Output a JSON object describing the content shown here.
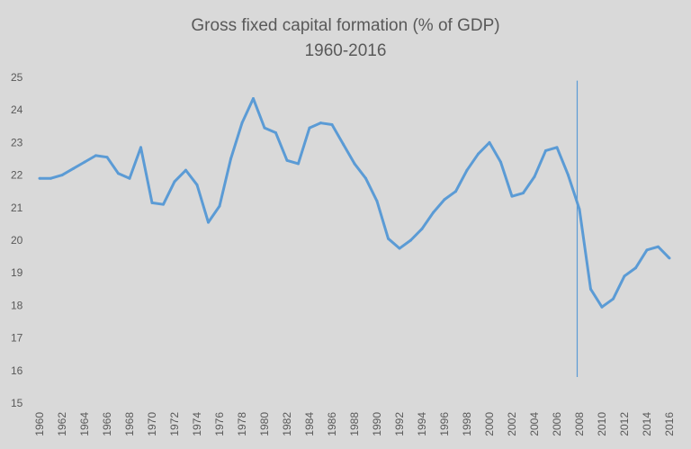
{
  "chart_data": {
    "type": "line",
    "title": "Gross fixed capital formation (% of GDP)",
    "subtitle": "1960-2016",
    "xlabel": "",
    "ylabel": "",
    "ylim": [
      15,
      25
    ],
    "xlim": [
      1960,
      2016
    ],
    "yticks": [
      "15",
      "16",
      "17",
      "18",
      "19",
      "20",
      "21",
      "22",
      "23",
      "24",
      "25"
    ],
    "xticks": [
      "1960",
      "1962",
      "1964",
      "1966",
      "1968",
      "1970",
      "1972",
      "1974",
      "1976",
      "1978",
      "1980",
      "1982",
      "1984",
      "1986",
      "1988",
      "1990",
      "1992",
      "1994",
      "1996",
      "1998",
      "2000",
      "2002",
      "2004",
      "2006",
      "2008",
      "2010",
      "2012",
      "2014",
      "2016"
    ],
    "grid": false,
    "legend": "none",
    "line_color": "#5b9bd5",
    "background": "#d9d9d9",
    "x": [
      1960,
      1961,
      1962,
      1963,
      1964,
      1965,
      1966,
      1967,
      1968,
      1969,
      1970,
      1971,
      1972,
      1973,
      1974,
      1975,
      1976,
      1977,
      1978,
      1979,
      1980,
      1981,
      1982,
      1983,
      1984,
      1985,
      1986,
      1987,
      1988,
      1989,
      1990,
      1991,
      1992,
      1993,
      1994,
      1995,
      1996,
      1997,
      1998,
      1999,
      2000,
      2001,
      2002,
      2003,
      2004,
      2005,
      2006,
      2007,
      2008,
      2009,
      2010,
      2011,
      2012,
      2013,
      2014,
      2015,
      2016
    ],
    "series": [
      {
        "values": [
          21.9,
          21.9,
          22.0,
          22.2,
          22.4,
          22.6,
          22.55,
          22.05,
          21.9,
          22.85,
          21.15,
          21.1,
          21.8,
          22.15,
          21.7,
          20.55,
          21.05,
          22.5,
          23.6,
          24.35,
          23.45,
          23.3,
          22.45,
          22.35,
          23.45,
          23.6,
          23.55,
          22.95,
          22.35,
          21.9,
          21.2,
          20.05,
          19.75,
          20.0,
          20.35,
          20.85,
          21.25,
          21.5,
          22.15,
          22.65,
          23.0,
          22.4,
          21.35,
          21.45,
          21.95,
          22.75,
          22.85,
          22.0,
          20.95,
          18.5,
          17.95,
          18.2,
          18.9,
          19.15,
          19.7,
          19.8,
          19.45
        ]
      }
    ],
    "annotations": [
      {
        "type": "vertical-line",
        "x": 2007.8,
        "y_range": [
          15.8,
          24.9
        ],
        "color": "#5b9bd5"
      }
    ]
  }
}
